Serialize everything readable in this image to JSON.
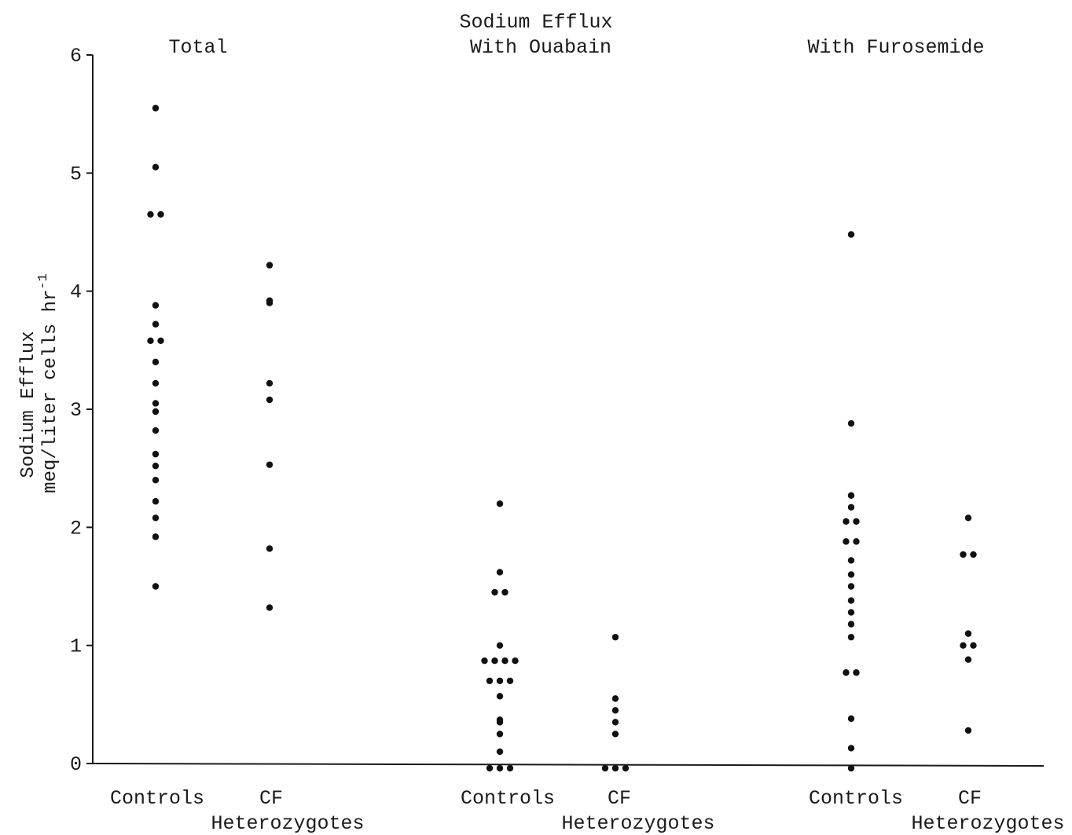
{
  "chart_data": {
    "type": "scatter",
    "title": "Sodium Efflux",
    "ylabel_line1": "Sodium Efflux",
    "ylabel_line2": "meq/liter cells hr",
    "ylabel_exponent": "-1",
    "ylim": [
      0,
      6
    ],
    "yticks": [
      "0",
      "1",
      "2",
      "3",
      "4",
      "5",
      "6"
    ],
    "grid": false,
    "panels": [
      {
        "title": "Total",
        "groups": [
          {
            "line1": "Controls",
            "line2": "",
            "values": [
              5.55,
              5.05,
              4.65,
              4.65,
              3.88,
              3.72,
              3.58,
              3.58,
              3.4,
              3.22,
              3.05,
              2.98,
              2.82,
              2.62,
              2.52,
              2.4,
              2.22,
              2.08,
              1.92,
              1.5
            ]
          },
          {
            "line1": "CF",
            "line2": "Heterozygotes",
            "values": [
              4.22,
              3.92,
              3.9,
              3.22,
              3.08,
              2.53,
              1.82,
              1.32
            ]
          }
        ]
      },
      {
        "title": "With Ouabain",
        "groups": [
          {
            "line1": "Controls",
            "line2": "",
            "values": [
              2.2,
              1.62,
              1.45,
              1.45,
              1.0,
              0.87,
              0.87,
              0.87,
              0.87,
              0.7,
              0.7,
              0.7,
              0.57,
              0.37,
              0.35,
              0.25,
              0.1,
              0.0,
              0.0,
              0.0
            ]
          },
          {
            "line1": "CF",
            "line2": "Heterozygotes",
            "values": [
              1.07,
              0.55,
              0.45,
              0.35,
              0.25,
              0.0,
              0.0,
              0.0
            ]
          }
        ]
      },
      {
        "title": "With Furosemide",
        "groups": [
          {
            "line1": "Controls",
            "line2": "",
            "values": [
              4.48,
              2.88,
              2.27,
              2.17,
              2.05,
              2.05,
              1.88,
              1.88,
              1.72,
              1.6,
              1.5,
              1.38,
              1.28,
              1.18,
              1.07,
              0.77,
              0.77,
              0.38,
              0.13,
              0.0
            ]
          },
          {
            "line1": "CF",
            "line2": "Heterozygotes",
            "values": [
              2.08,
              1.77,
              1.77,
              1.1,
              1.0,
              1.0,
              0.88,
              0.28
            ]
          }
        ]
      }
    ]
  }
}
